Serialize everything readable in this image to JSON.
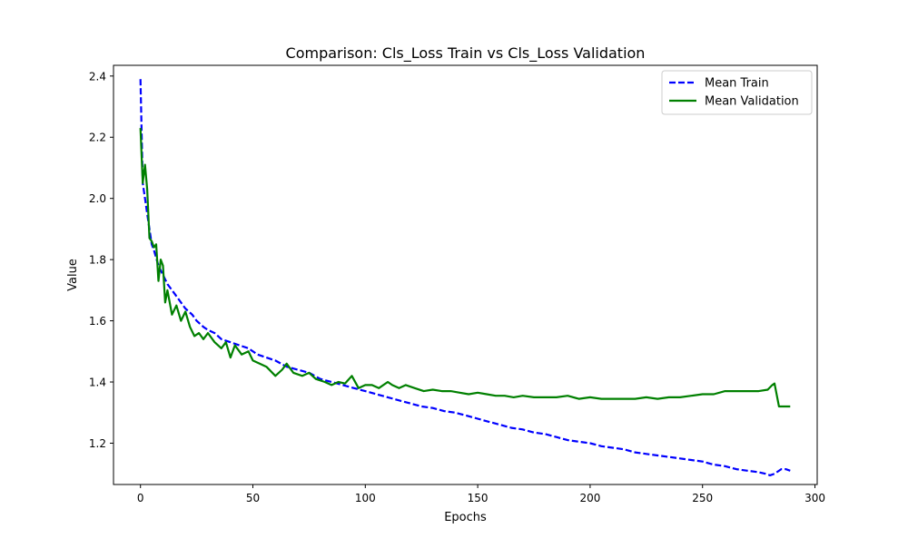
{
  "chart_data": {
    "type": "line",
    "title": "Comparison: Cls_Loss Train vs Cls_Loss Validation",
    "xlabel": "Epochs",
    "ylabel": "Value",
    "xlim": [
      -12,
      301
    ],
    "ylim": [
      1.065,
      2.435
    ],
    "xticks": [
      0,
      50,
      100,
      150,
      200,
      250,
      300
    ],
    "yticks": [
      1.2,
      1.4,
      1.6,
      1.8,
      2.0,
      2.2,
      2.4
    ],
    "xtick_labels": [
      "0",
      "50",
      "100",
      "150",
      "200",
      "250",
      "300"
    ],
    "ytick_labels": [
      "1.2",
      "1.4",
      "1.6",
      "1.8",
      "2.0",
      "2.2",
      "2.4"
    ],
    "legend_position": "top-right",
    "grid": false,
    "series": [
      {
        "name": "Mean Train",
        "color": "#0000ff",
        "style": "dashed",
        "x": [
          0,
          1,
          2,
          3,
          4,
          5,
          6,
          8,
          10,
          12,
          15,
          18,
          20,
          23,
          25,
          28,
          30,
          33,
          36,
          40,
          44,
          48,
          52,
          56,
          60,
          65,
          70,
          75,
          80,
          85,
          90,
          95,
          100,
          105,
          110,
          115,
          120,
          125,
          130,
          135,
          140,
          145,
          150,
          155,
          160,
          165,
          170,
          175,
          180,
          185,
          190,
          195,
          200,
          205,
          210,
          215,
          220,
          225,
          230,
          235,
          240,
          245,
          250,
          255,
          260,
          265,
          270,
          275,
          278,
          280,
          282,
          285,
          287,
          289
        ],
        "y": [
          2.39,
          2.05,
          2.0,
          1.95,
          1.9,
          1.85,
          1.83,
          1.78,
          1.75,
          1.72,
          1.69,
          1.66,
          1.64,
          1.62,
          1.6,
          1.58,
          1.57,
          1.56,
          1.54,
          1.53,
          1.52,
          1.51,
          1.49,
          1.48,
          1.47,
          1.45,
          1.44,
          1.43,
          1.41,
          1.4,
          1.39,
          1.38,
          1.37,
          1.36,
          1.35,
          1.34,
          1.33,
          1.32,
          1.315,
          1.305,
          1.3,
          1.29,
          1.28,
          1.27,
          1.26,
          1.25,
          1.245,
          1.235,
          1.23,
          1.22,
          1.21,
          1.205,
          1.2,
          1.19,
          1.185,
          1.18,
          1.17,
          1.165,
          1.16,
          1.155,
          1.15,
          1.145,
          1.14,
          1.13,
          1.125,
          1.115,
          1.11,
          1.105,
          1.1,
          1.095,
          1.1,
          1.115,
          1.115,
          1.11
        ]
      },
      {
        "name": "Mean Validation",
        "color": "#008000",
        "style": "solid",
        "x": [
          0,
          1,
          2,
          3,
          4,
          5,
          6,
          7,
          8,
          9,
          10,
          11,
          12,
          14,
          16,
          18,
          20,
          22,
          24,
          26,
          28,
          30,
          33,
          36,
          38,
          40,
          42,
          45,
          48,
          50,
          53,
          56,
          60,
          63,
          65,
          68,
          72,
          75,
          78,
          82,
          85,
          88,
          91,
          94,
          97,
          100,
          103,
          106,
          110,
          112,
          115,
          118,
          122,
          126,
          130,
          134,
          138,
          142,
          146,
          150,
          154,
          158,
          162,
          166,
          170,
          175,
          180,
          185,
          190,
          195,
          200,
          205,
          210,
          215,
          220,
          225,
          230,
          235,
          240,
          245,
          250,
          255,
          260,
          265,
          270,
          275,
          279,
          281,
          282,
          284,
          286,
          289
        ],
        "y": [
          2.23,
          2.05,
          2.11,
          2.03,
          1.87,
          1.86,
          1.84,
          1.85,
          1.73,
          1.8,
          1.78,
          1.66,
          1.7,
          1.62,
          1.65,
          1.6,
          1.63,
          1.58,
          1.55,
          1.56,
          1.54,
          1.56,
          1.53,
          1.51,
          1.53,
          1.48,
          1.52,
          1.49,
          1.5,
          1.47,
          1.46,
          1.45,
          1.42,
          1.44,
          1.46,
          1.43,
          1.42,
          1.43,
          1.41,
          1.4,
          1.39,
          1.4,
          1.395,
          1.42,
          1.38,
          1.39,
          1.39,
          1.38,
          1.4,
          1.39,
          1.38,
          1.39,
          1.38,
          1.37,
          1.375,
          1.37,
          1.37,
          1.365,
          1.36,
          1.365,
          1.36,
          1.355,
          1.355,
          1.35,
          1.355,
          1.35,
          1.35,
          1.35,
          1.355,
          1.345,
          1.35,
          1.345,
          1.345,
          1.345,
          1.345,
          1.35,
          1.345,
          1.35,
          1.35,
          1.355,
          1.36,
          1.36,
          1.37,
          1.37,
          1.37,
          1.37,
          1.375,
          1.39,
          1.395,
          1.32,
          1.32,
          1.32
        ]
      }
    ]
  }
}
